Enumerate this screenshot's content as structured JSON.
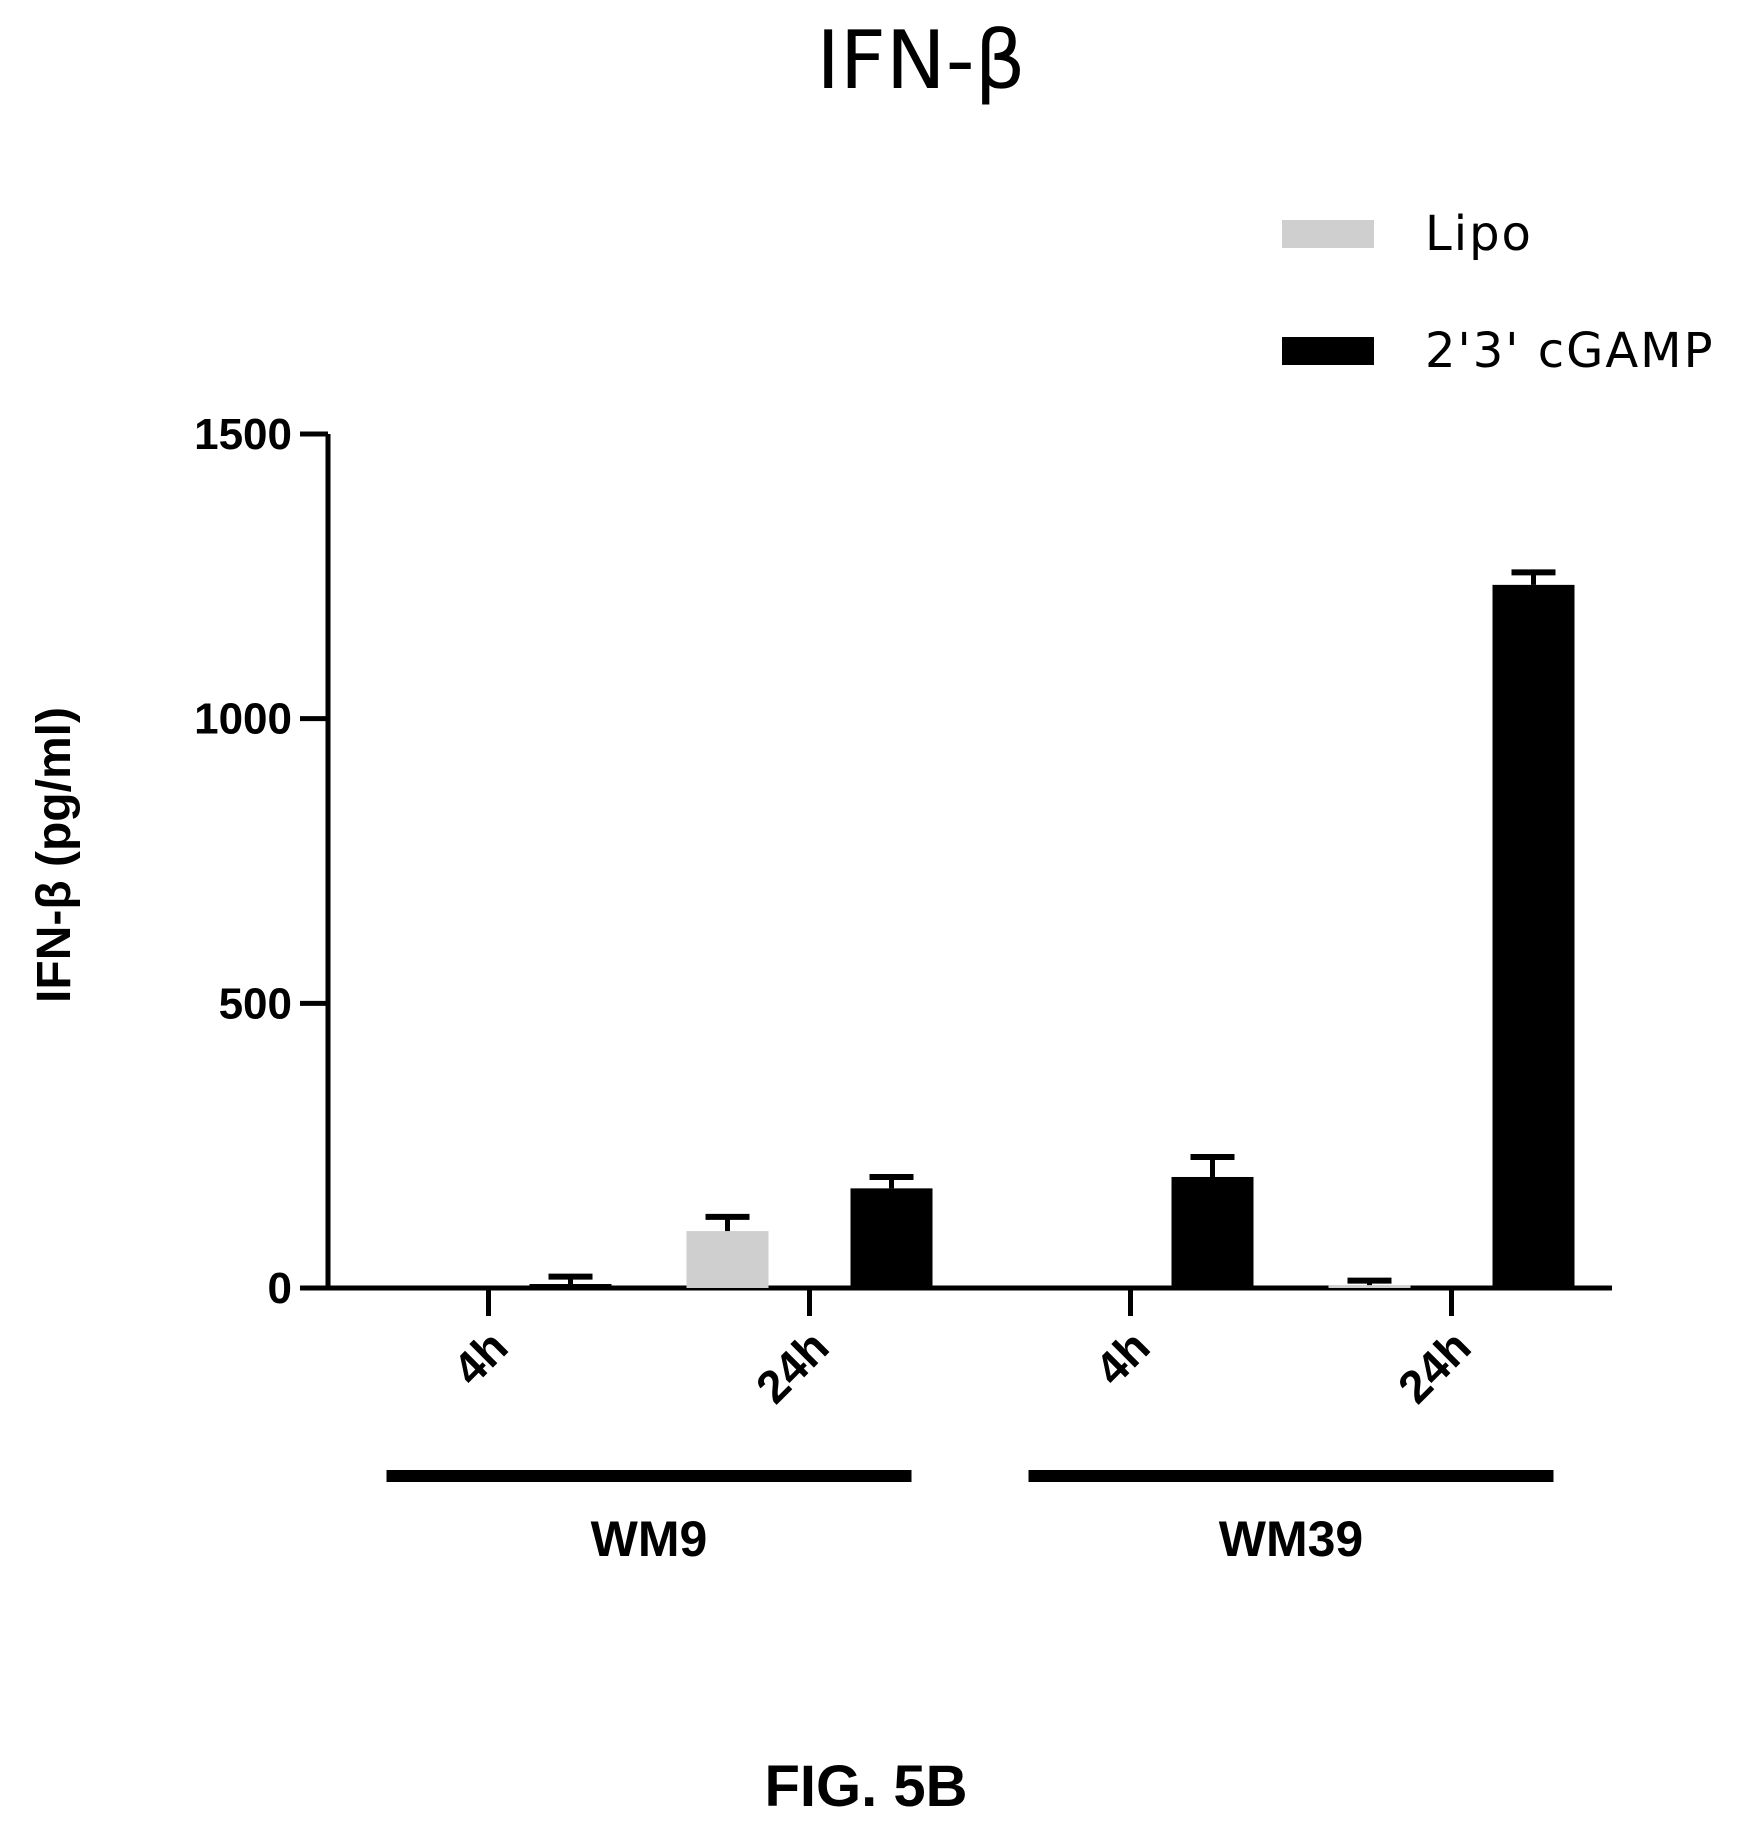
{
  "chart_data": {
    "type": "bar",
    "title": "IFN-β",
    "ylabel": "IFN-β (pg/ml)",
    "xlabel": "",
    "ylim": [
      0,
      1500
    ],
    "yticks": [
      0,
      500,
      1000,
      1500
    ],
    "categories": [
      "4h",
      "24h",
      "4h",
      "24h"
    ],
    "groups": [
      {
        "label": "WM9",
        "categories": [
          "4h",
          "24h"
        ]
      },
      {
        "label": "WM39",
        "categories": [
          "4h",
          "24h"
        ]
      }
    ],
    "series": [
      {
        "name": "Lipo",
        "color": "#cfcfcf",
        "values": [
          0,
          100,
          0,
          5
        ],
        "errors": [
          0,
          25,
          0,
          8
        ]
      },
      {
        "name": "2'3' cGAMP",
        "color": "#000000",
        "values": [
          7,
          175,
          195,
          1235
        ],
        "errors": [
          13,
          20,
          35,
          22
        ]
      }
    ],
    "legend_position": "top-right",
    "grid": false
  },
  "caption": "FIG. 5B"
}
